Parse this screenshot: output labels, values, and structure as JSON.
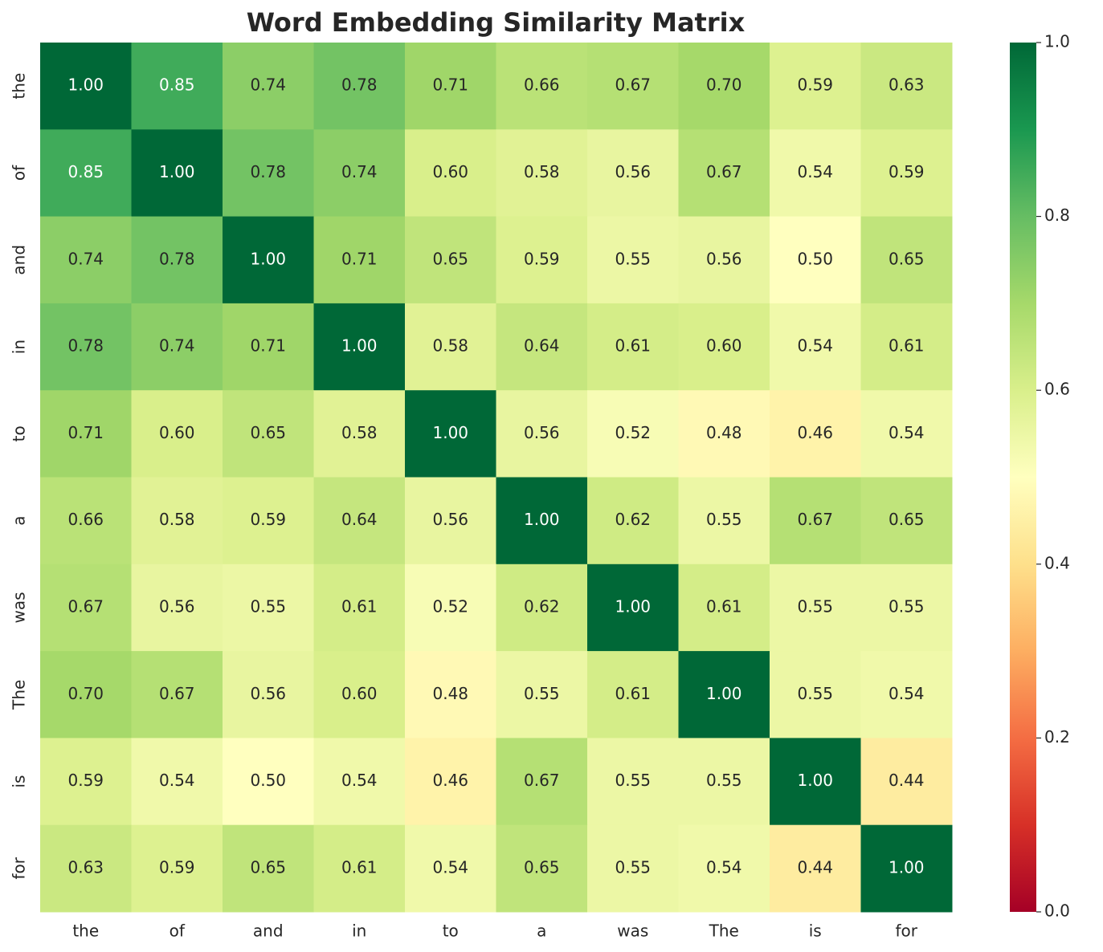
{
  "chart_data": {
    "type": "heatmap",
    "title": "Word Embedding Similarity Matrix",
    "categories": [
      "the",
      "of",
      "and",
      "in",
      "to",
      "a",
      "was",
      "The",
      "is",
      "for"
    ],
    "values": [
      [
        1.0,
        0.85,
        0.74,
        0.78,
        0.71,
        0.66,
        0.67,
        0.7,
        0.59,
        0.63
      ],
      [
        0.85,
        1.0,
        0.78,
        0.74,
        0.6,
        0.58,
        0.56,
        0.67,
        0.54,
        0.59
      ],
      [
        0.74,
        0.78,
        1.0,
        0.71,
        0.65,
        0.59,
        0.55,
        0.56,
        0.5,
        0.65
      ],
      [
        0.78,
        0.74,
        0.71,
        1.0,
        0.58,
        0.64,
        0.61,
        0.6,
        0.54,
        0.61
      ],
      [
        0.71,
        0.6,
        0.65,
        0.58,
        1.0,
        0.56,
        0.52,
        0.48,
        0.46,
        0.54
      ],
      [
        0.66,
        0.58,
        0.59,
        0.64,
        0.56,
        1.0,
        0.62,
        0.55,
        0.67,
        0.65
      ],
      [
        0.67,
        0.56,
        0.55,
        0.61,
        0.52,
        0.62,
        1.0,
        0.61,
        0.55,
        0.55
      ],
      [
        0.7,
        0.67,
        0.56,
        0.6,
        0.48,
        0.55,
        0.61,
        1.0,
        0.55,
        0.54
      ],
      [
        0.59,
        0.54,
        0.5,
        0.54,
        0.46,
        0.67,
        0.55,
        0.55,
        1.0,
        0.44
      ],
      [
        0.63,
        0.59,
        0.65,
        0.61,
        0.54,
        0.65,
        0.55,
        0.54,
        0.44,
        1.0
      ]
    ],
    "value_labels": [
      [
        "1.00",
        "0.85",
        "0.74",
        "0.78",
        "0.71",
        "0.66",
        "0.67",
        "0.70",
        "0.59",
        "0.63"
      ],
      [
        "0.85",
        "1.00",
        "0.78",
        "0.74",
        "0.60",
        "0.58",
        "0.56",
        "0.67",
        "0.54",
        "0.59"
      ],
      [
        "0.74",
        "0.78",
        "1.00",
        "0.71",
        "0.65",
        "0.59",
        "0.55",
        "0.56",
        "0.50",
        "0.65"
      ],
      [
        "0.78",
        "0.74",
        "0.71",
        "1.00",
        "0.58",
        "0.64",
        "0.61",
        "0.60",
        "0.54",
        "0.61"
      ],
      [
        "0.71",
        "0.60",
        "0.65",
        "0.58",
        "1.00",
        "0.56",
        "0.52",
        "0.48",
        "0.46",
        "0.54"
      ],
      [
        "0.66",
        "0.58",
        "0.59",
        "0.64",
        "0.56",
        "1.00",
        "0.62",
        "0.55",
        "0.67",
        "0.65"
      ],
      [
        "0.67",
        "0.56",
        "0.55",
        "0.61",
        "0.52",
        "0.62",
        "1.00",
        "0.61",
        "0.55",
        "0.55"
      ],
      [
        "0.70",
        "0.67",
        "0.56",
        "0.60",
        "0.48",
        "0.55",
        "0.61",
        "1.00",
        "0.55",
        "0.54"
      ],
      [
        "0.59",
        "0.54",
        "0.50",
        "0.54",
        "0.46",
        "0.67",
        "0.55",
        "0.55",
        "1.00",
        "0.44"
      ],
      [
        "0.63",
        "0.59",
        "0.65",
        "0.61",
        "0.54",
        "0.65",
        "0.55",
        "0.54",
        "0.44",
        "1.00"
      ]
    ],
    "colormap": "RdYlGn",
    "clim": [
      0,
      1
    ],
    "cticks": [
      {
        "value": 0,
        "label": "0.0"
      },
      0.2,
      0.4,
      0.6,
      0.8,
      {
        "value": 1,
        "label": "1.0"
      }
    ]
  }
}
